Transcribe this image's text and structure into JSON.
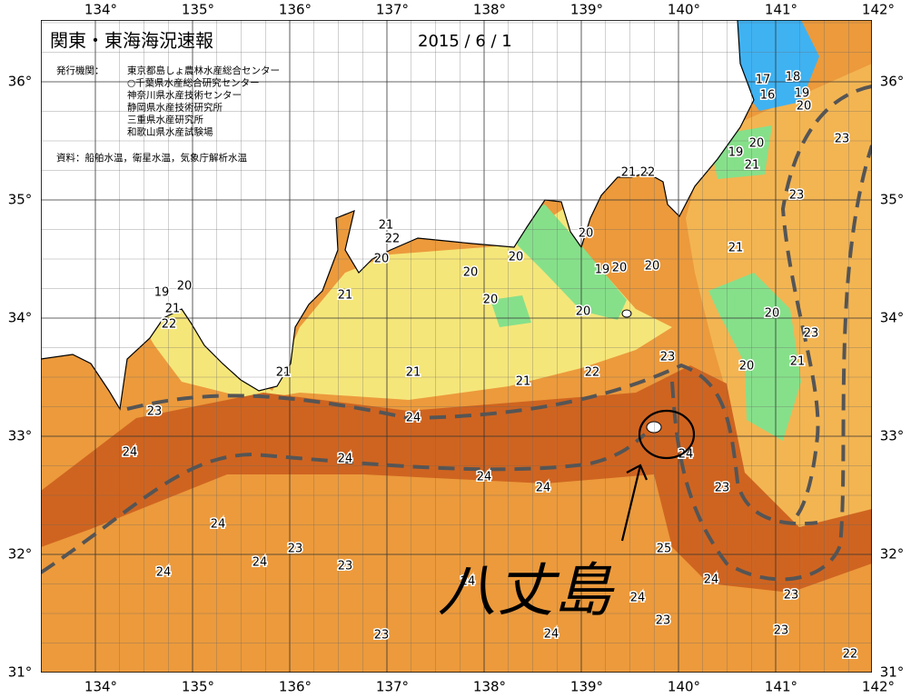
{
  "header": {
    "title": "関東・東海海況速報",
    "date": "2015 / 6 / 1"
  },
  "agencies_label": "発行機関：",
  "agencies": [
    "東京都島しょ農林水産総合センター",
    "○千葉県水産総合研究センター",
    "神奈川県水産技術センター",
    "静岡県水産技術研究所",
    "三重県水産研究所",
    "和歌山県水産試験場"
  ],
  "source": "資料：船舶水温，衛星水温，気象庁解析水温",
  "longitudes": [
    {
      "value": 134,
      "label": "134°"
    },
    {
      "value": 135,
      "label": "135°"
    },
    {
      "value": 136,
      "label": "136°"
    },
    {
      "value": 137,
      "label": "137°"
    },
    {
      "value": 138,
      "label": "138°"
    },
    {
      "value": 139,
      "label": "139°"
    },
    {
      "value": 140,
      "label": "140°"
    },
    {
      "value": 141,
      "label": "141°"
    },
    {
      "value": 142,
      "label": "142°"
    }
  ],
  "latitudes": [
    {
      "value": 36,
      "label": "36°"
    },
    {
      "value": 35,
      "label": "35°"
    },
    {
      "value": 34,
      "label": "34°"
    },
    {
      "value": 33,
      "label": "33°"
    },
    {
      "value": 32,
      "label": "32°"
    },
    {
      "value": 31,
      "label": "31°"
    }
  ],
  "contour_labels": [
    17,
    18,
    16,
    19,
    20,
    23,
    19,
    20,
    21,
    21,
    22,
    23,
    21,
    22,
    20,
    20,
    21,
    20,
    20,
    20,
    19,
    20,
    20,
    19,
    21,
    21,
    20,
    20,
    22,
    20,
    23,
    23,
    21,
    21,
    21,
    22,
    20,
    21,
    23,
    24,
    24,
    24,
    24,
    24,
    24,
    23,
    24,
    23,
    24,
    23,
    25,
    24,
    24,
    24,
    23,
    24,
    23,
    23,
    23,
    24,
    22
  ],
  "annotation": "八丈島"
}
